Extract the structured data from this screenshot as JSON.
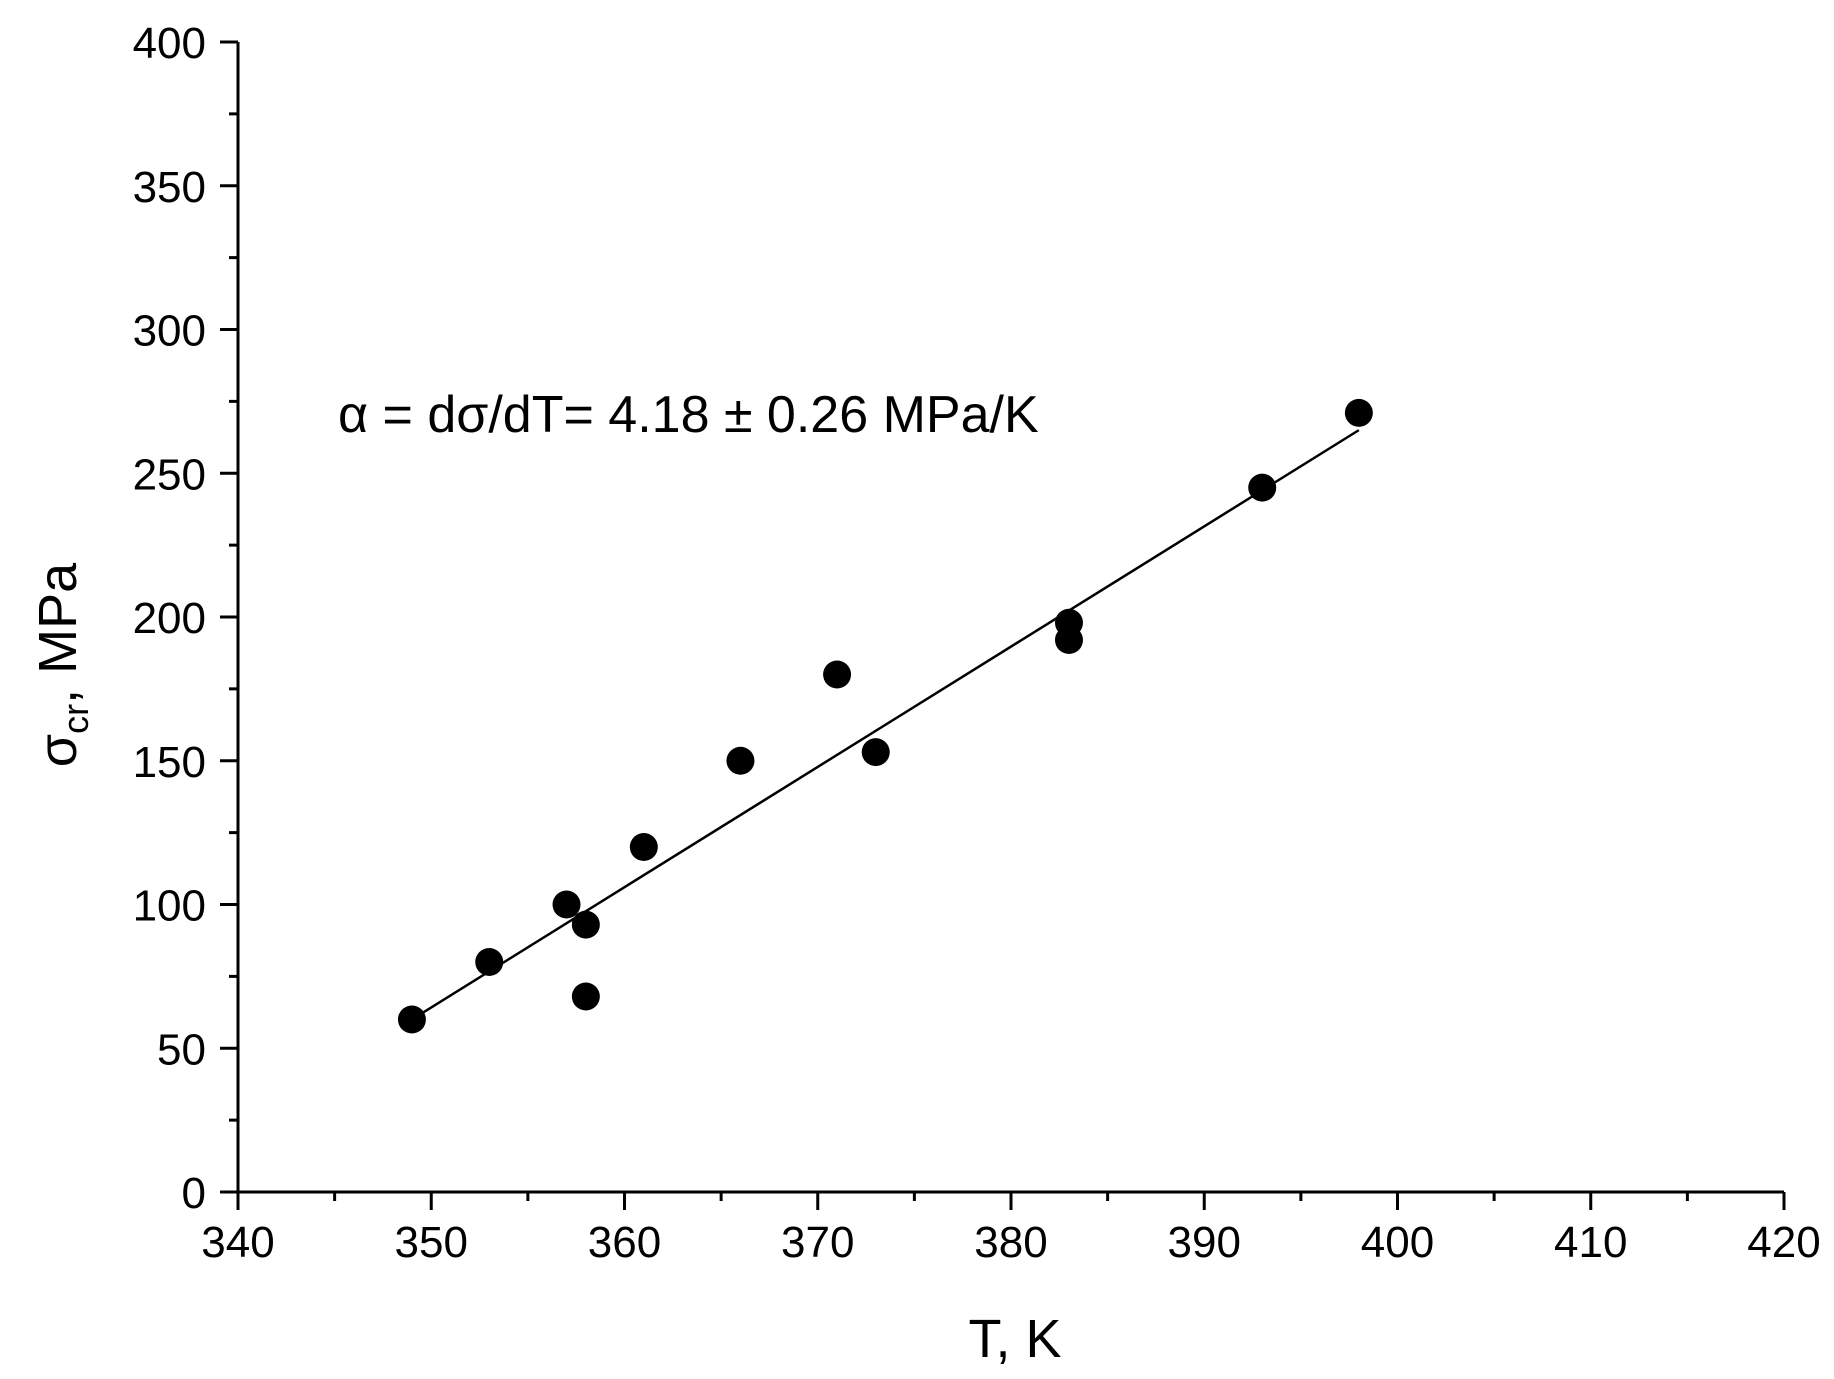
{
  "chart_data": {
    "type": "scatter",
    "title": "",
    "xlabel": "T, K",
    "ylabel": {
      "symbol": "σ",
      "subscript": "cr",
      "suffix": ", MPa"
    },
    "xlim": [
      340,
      420
    ],
    "ylim": [
      0,
      400
    ],
    "xticks": [
      340,
      350,
      360,
      370,
      380,
      390,
      400,
      410,
      420
    ],
    "yticks": [
      0,
      50,
      100,
      150,
      200,
      250,
      300,
      350,
      400
    ],
    "x_minor_step": 5,
    "y_minor_step": 25,
    "grid": false,
    "series": [
      {
        "type": "scatter",
        "marker": "filled-circle",
        "color": "#000000",
        "points": [
          {
            "x": 349,
            "y": 60
          },
          {
            "x": 353,
            "y": 80
          },
          {
            "x": 357,
            "y": 100
          },
          {
            "x": 358,
            "y": 93
          },
          {
            "x": 358,
            "y": 68
          },
          {
            "x": 361,
            "y": 120
          },
          {
            "x": 366,
            "y": 150
          },
          {
            "x": 371,
            "y": 180
          },
          {
            "x": 373,
            "y": 153
          },
          {
            "x": 383,
            "y": 198
          },
          {
            "x": 383,
            "y": 192
          },
          {
            "x": 393,
            "y": 245
          },
          {
            "x": 398,
            "y": 271
          }
        ]
      },
      {
        "type": "line",
        "color": "#000000",
        "points": [
          {
            "x": 349,
            "y": 60
          },
          {
            "x": 398,
            "y": 265
          }
        ]
      }
    ],
    "annotation": "α = dσ/dT= 4.18 ± 0.26 MPa/K"
  }
}
